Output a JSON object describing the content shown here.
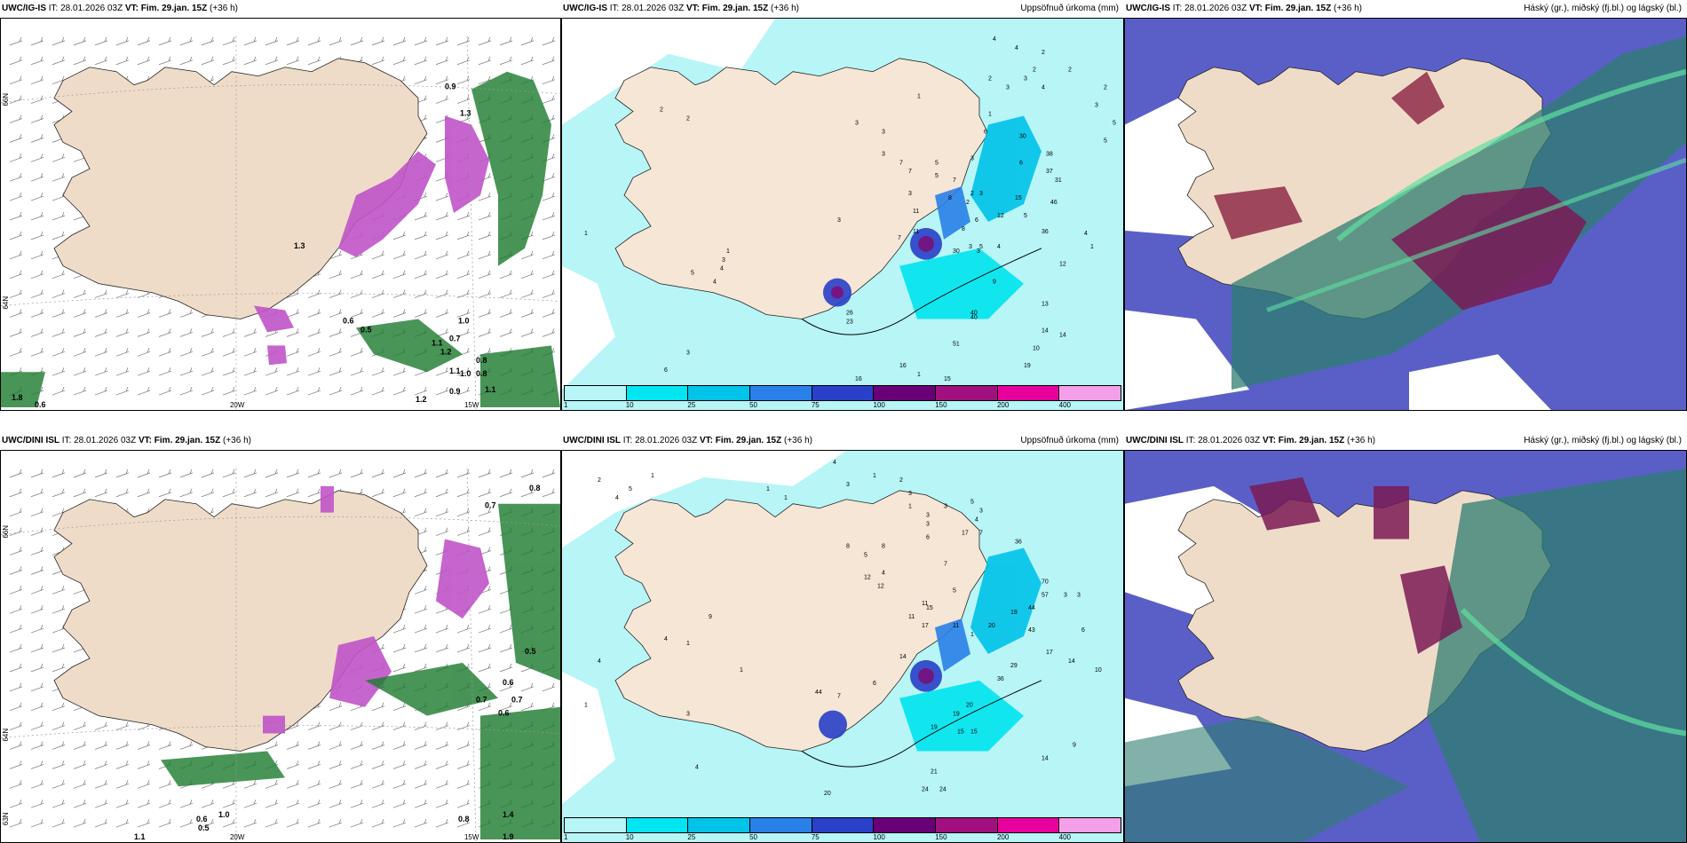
{
  "panels": [
    {
      "model": "UWC/IG-IS",
      "it_label": "IT:",
      "it": "28.01.2026 03Z",
      "vt_label": "VT:",
      "vt": "Fim. 29.jan. 15Z",
      "lead": "(+36 h)",
      "right": ""
    },
    {
      "model": "UWC/IG-IS",
      "it_label": "IT:",
      "it": "28.01.2026 03Z",
      "vt_label": "VT:",
      "vt": "Fim. 29.jan. 15Z",
      "lead": "(+36 h)",
      "right": "Uppsöfnuð úrkoma (mm)"
    },
    {
      "model": "UWC/IG-IS",
      "it_label": "IT:",
      "it": "28.01.2026 03Z",
      "vt_label": "VT:",
      "vt": "Fim. 29.jan. 15Z",
      "lead": "(+36 h)",
      "right": "Háský (gr.), miðský (fj.bl.) og lágský (bl.)"
    },
    {
      "model": "UWC/DINI ISL",
      "it_label": "IT:",
      "it": "28.01.2026 03Z",
      "vt_label": "VT:",
      "vt": "Fim. 29.jan. 15Z",
      "lead": "(+36 h)",
      "right": ""
    },
    {
      "model": "UWC/DINI ISL",
      "it_label": "IT:",
      "it": "28.01.2026 03Z",
      "vt_label": "VT:",
      "vt": "Fim. 29.jan. 15Z",
      "lead": "(+36 h)",
      "right": "Uppsöfnuð úrkoma (mm)"
    },
    {
      "model": "UWC/DINI ISL",
      "it_label": "IT:",
      "it": "28.01.2026 03Z",
      "vt_label": "VT:",
      "vt": "Fim. 29.jan. 15Z",
      "lead": "(+36 h)",
      "right": "Háský (gr.), miðský (fj.bl.) og lágský (bl.)"
    }
  ],
  "axis_labels": {
    "lat_top": "66N",
    "lat_mid": "64N",
    "lat_bottom": "63N",
    "lon_20": "20W",
    "lon_15": "15W"
  },
  "colorbar": {
    "ticks": [
      "1",
      "10",
      "25",
      "50",
      "75",
      "100",
      "150",
      "200",
      "400"
    ],
    "colors": [
      "#b7f5f7",
      "#00e5ef",
      "#00c3e8",
      "#2a80e8",
      "#2a40c8",
      "#6a0078",
      "#a0107e",
      "#e8009c",
      "#f4a0e8"
    ]
  },
  "precip_top": {
    "labels": [
      "4",
      "4",
      "2",
      "2",
      "2",
      "2",
      "5",
      "3",
      "2",
      "3",
      "3",
      "4",
      "1",
      "2",
      "2",
      "3",
      "3",
      "1",
      "3",
      "7",
      "5",
      "6",
      "5",
      "3",
      "7",
      "7",
      "30",
      "5",
      "3",
      "6",
      "3",
      "8",
      "38",
      "37",
      "40",
      "1",
      "11",
      "2",
      "15",
      "2",
      "3",
      "12",
      "46",
      "5",
      "4",
      "11",
      "8",
      "6",
      "31",
      "1",
      "36",
      "1",
      "3",
      "9",
      "30",
      "5",
      "4",
      "5",
      "4",
      "4",
      "7",
      "3",
      "3",
      "12",
      "26",
      "13",
      "23",
      "14",
      "14",
      "51",
      "40",
      "16",
      "3",
      "6",
      "10",
      "19",
      "16",
      "15",
      "1"
    ]
  },
  "precip_bottom": {
    "labels": [
      "2",
      "4",
      "5",
      "1",
      "1",
      "1",
      "4",
      "3",
      "1",
      "2",
      "3",
      "1",
      "3",
      "6",
      "3",
      "3",
      "5",
      "3",
      "4",
      "7",
      "36",
      "8",
      "5",
      "8",
      "4",
      "12",
      "12",
      "17",
      "7",
      "5",
      "11",
      "15",
      "19",
      "44",
      "57",
      "3",
      "9",
      "11",
      "11",
      "1",
      "17",
      "70",
      "3",
      "20",
      "43",
      "6",
      "4",
      "1",
      "29",
      "17",
      "14",
      "10",
      "36",
      "1",
      "4",
      "14",
      "44",
      "7",
      "6",
      "20",
      "19",
      "19",
      "15",
      "15",
      "9",
      "3",
      "1",
      "21",
      "24",
      "24",
      "20",
      "4",
      "14"
    ]
  },
  "wind_labels_top": [
    "0.9",
    "1.3",
    "1.0",
    "0.8",
    "1.3",
    "0.6",
    "0.5",
    "1.1",
    "0.7",
    "1.2",
    "1.1",
    "1.0",
    "0.8",
    "0.9",
    "1.1",
    "1.2",
    "1.8",
    "0.6"
  ],
  "wind_labels_bottom": [
    "0.8",
    "0.7",
    "0.5",
    "0.6",
    "0.7",
    "0.6",
    "0.7",
    "0.8",
    "1.0",
    "0.6",
    "0.5",
    "1.4",
    "1.9",
    "1.1"
  ]
}
